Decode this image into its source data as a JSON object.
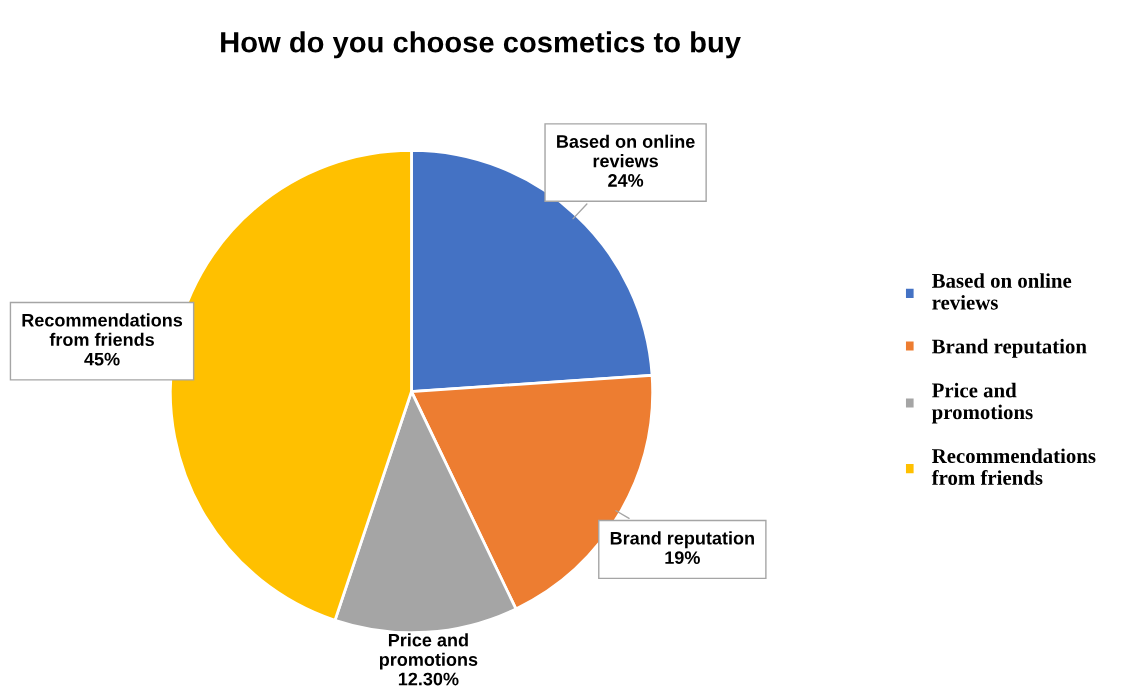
{
  "chart_data": {
    "type": "pie",
    "title": "How do you choose cosmetics to buy",
    "categories": [
      "Based on online reviews",
      "Brand reputation",
      "Price and promotions",
      "Recommendations from friends"
    ],
    "values": [
      24,
      19,
      12.3,
      45
    ],
    "value_labels": [
      "24%",
      "19%",
      "12.30%",
      "45%"
    ],
    "colors": [
      "#4472c4",
      "#ed7d31",
      "#a5a5a5",
      "#ffc000"
    ],
    "legend": "right"
  }
}
